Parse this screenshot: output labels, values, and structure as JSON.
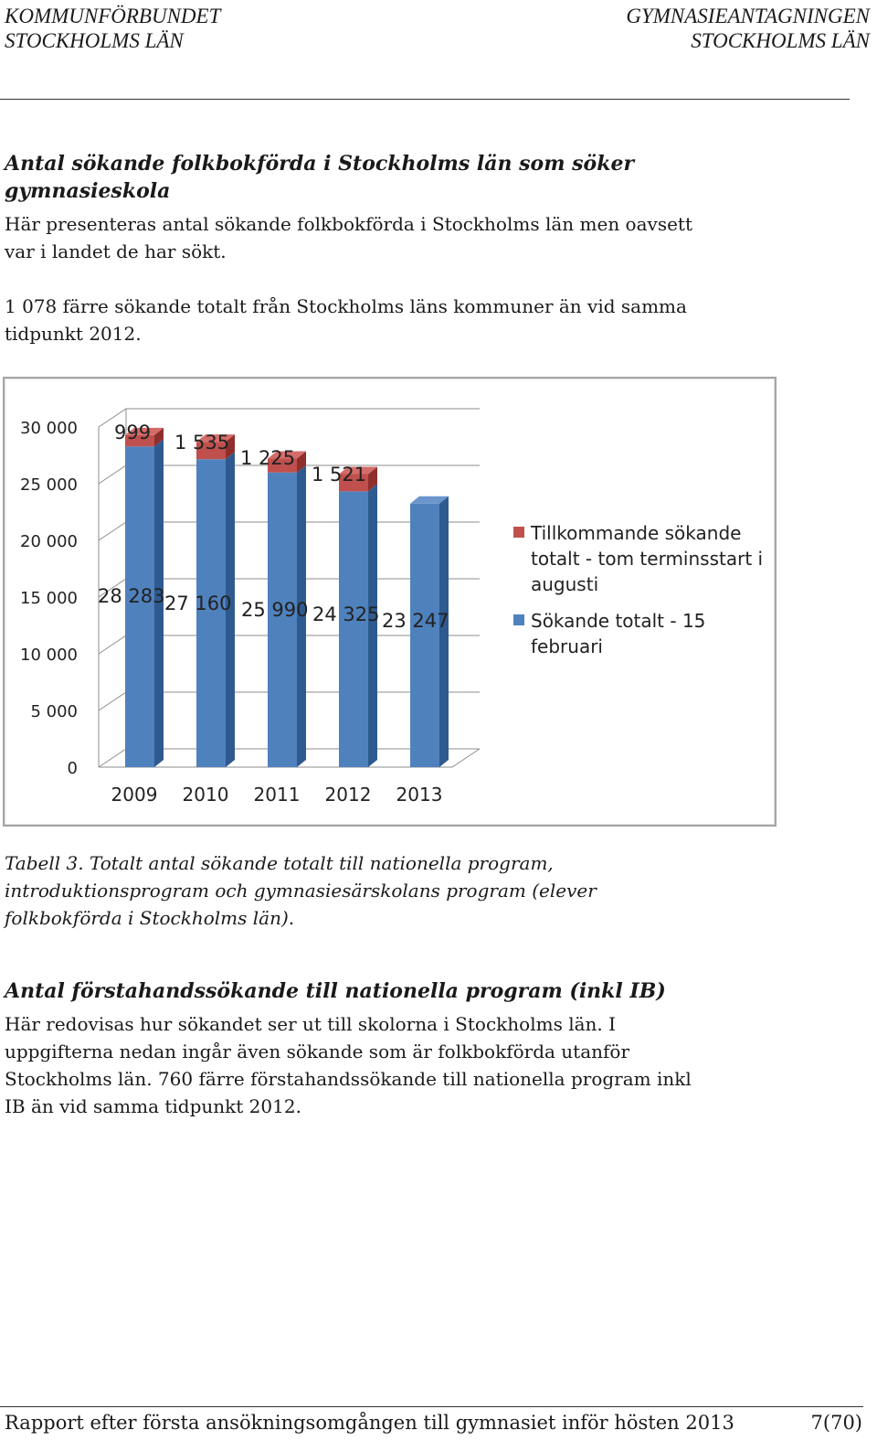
{
  "header": {
    "left_line1": "KOMMUNFÖRBUNDET",
    "left_line2": "STOCKHOLMS LÄN",
    "right_line1": "GYMNASIEANTAGNINGEN",
    "right_line2": "STOCKHOLMS LÄN"
  },
  "section1": {
    "heading_line1": "Antal sökande folkbokförda i Stockholms län som söker",
    "heading_line2": "gymnasieskola",
    "para1_line1": "Här presenteras antal sökande folkbokförda i Stockholms län men oavsett",
    "para1_line2": "var i landet de har sökt.",
    "para2_line1": "1 078 färre sökande totalt från Stockholms läns kommuner än vid samma",
    "para2_line2": "tidpunkt 2012."
  },
  "chart_data": {
    "type": "bar",
    "stacked": true,
    "three_d": true,
    "categories": [
      "2009",
      "2010",
      "2011",
      "2012",
      "2013"
    ],
    "series": [
      {
        "name": "Sökande totalt - 15 februari",
        "color": "#4f81bd",
        "values": [
          28283,
          27160,
          25990,
          24325,
          23247
        ]
      },
      {
        "name": "Tillkommande sökande totalt -  tom terminsstart i augusti",
        "color": "#c0504d",
        "values": [
          999,
          1535,
          1225,
          1521,
          null
        ]
      }
    ],
    "data_labels_bottom": [
      "28 283",
      "27 160",
      "25 990",
      "24 325",
      "23 247"
    ],
    "data_labels_top": [
      "999",
      "1 535",
      "1 225",
      "1 521"
    ],
    "yticks": [
      "0",
      "5 000",
      "10 000",
      "15 000",
      "20 000",
      "25 000",
      "30 000"
    ],
    "ylim": [
      0,
      30000
    ],
    "legend": {
      "position": "right",
      "item1_line1": "Tillkommande sökande",
      "item1_line2": "totalt -  tom terminsstart i",
      "item1_line3": "augusti",
      "item2_line1": "Sökande totalt - 15",
      "item2_line2": "februari"
    },
    "grid": true
  },
  "caption": {
    "line1": "Tabell 3. Totalt antal sökande totalt till nationella program,",
    "line2": "introduktionsprogram och gymnasiesärskolans program (elever",
    "line3": "folkbokförda i Stockholms län)."
  },
  "section2": {
    "heading": "Antal förstahandssökande till nationella program (inkl IB)",
    "para_line1": "Här redovisas hur sökandet ser ut till skolorna i Stockholms län. I",
    "para_line2": "uppgifterna nedan ingår även sökande som är folkbokförda utanför",
    "para_line3": "Stockholms län. 760 färre förstahandssökande till nationella program inkl",
    "para_line4": "IB än vid samma tidpunkt 2012."
  },
  "footer": {
    "left": "Rapport efter första ansökningsomgången till gymnasiet inför hösten 2013",
    "right": "7(70)"
  }
}
